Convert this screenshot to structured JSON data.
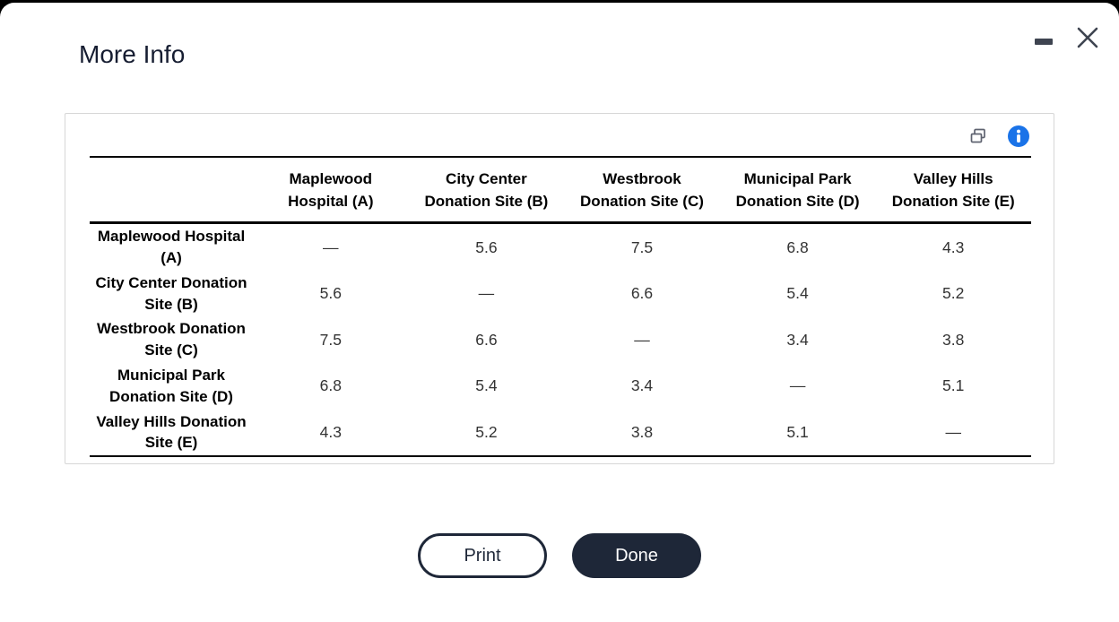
{
  "window": {
    "title": "More Info",
    "controls": {
      "minimize_label": "minimize",
      "close_label": "close"
    }
  },
  "card": {
    "icons": [
      {
        "name": "copy-icon",
        "color": "#5f6370"
      },
      {
        "name": "info-icon",
        "color": "#1a73e8"
      }
    ]
  },
  "table": {
    "corner_label": "",
    "columns": [
      "Maplewood Hospital (A)",
      "City Center Donation Site (B)",
      "Westbrook Donation Site (C)",
      "Municipal Park Donation Site (D)",
      "Valley Hills Donation Site (E)"
    ],
    "rows": [
      {
        "label": "Maplewood Hospital (A)",
        "values": [
          "—",
          "5.6",
          "7.5",
          "6.8",
          "4.3"
        ]
      },
      {
        "label": "City Center Donation Site (B)",
        "values": [
          "5.6",
          "—",
          "6.6",
          "5.4",
          "5.2"
        ]
      },
      {
        "label": "Westbrook Donation Site (C)",
        "values": [
          "7.5",
          "6.6",
          "—",
          "3.4",
          "3.8"
        ]
      },
      {
        "label": "Municipal Park Donation Site (D)",
        "values": [
          "6.8",
          "5.4",
          "3.4",
          "—",
          "5.1"
        ]
      },
      {
        "label": "Valley Hills Donation Site (E)",
        "values": [
          "4.3",
          "5.2",
          "3.8",
          "5.1",
          "—"
        ]
      }
    ]
  },
  "buttons": {
    "print_label": "Print",
    "done_label": "Done"
  },
  "colors": {
    "accent_navy": "#1e2738",
    "title_navy": "#161d31",
    "info_blue": "#1a73e8",
    "icon_gray": "#5f6370",
    "control_gray": "#3e4450"
  }
}
